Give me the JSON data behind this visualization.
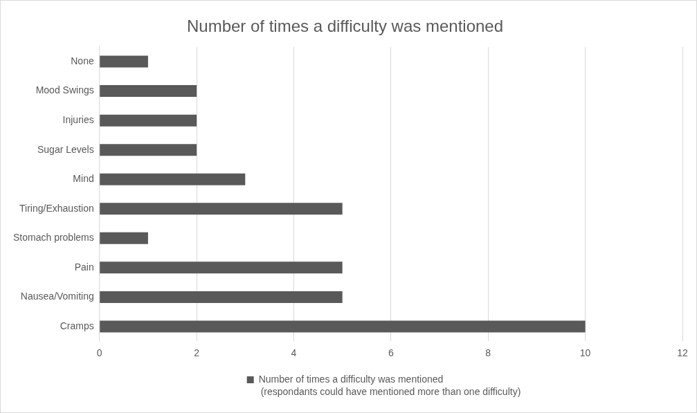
{
  "chart_data": {
    "type": "bar",
    "orientation": "horizontal",
    "title": "Number of times a difficulty was mentioned",
    "categories": [
      "None",
      "Mood Swings",
      "Injuries",
      "Sugar Levels",
      "Mind",
      "Tiring/Exhaustion",
      "Stomach problems",
      "Pain",
      "Nausea/Vomiting",
      "Cramps"
    ],
    "series": [
      {
        "name": "Number of times a difficulty was mentioned",
        "color": "#595959",
        "values": [
          1,
          2,
          2,
          2,
          3,
          5,
          1,
          5,
          5,
          10
        ]
      }
    ],
    "xlim": [
      0,
      12
    ],
    "xticks": [
      0,
      2,
      4,
      6,
      8,
      10,
      12
    ],
    "grid": "x",
    "legend": "bottom",
    "annotations": [
      "(respondants could have mentioned more than one difficulty)"
    ]
  }
}
